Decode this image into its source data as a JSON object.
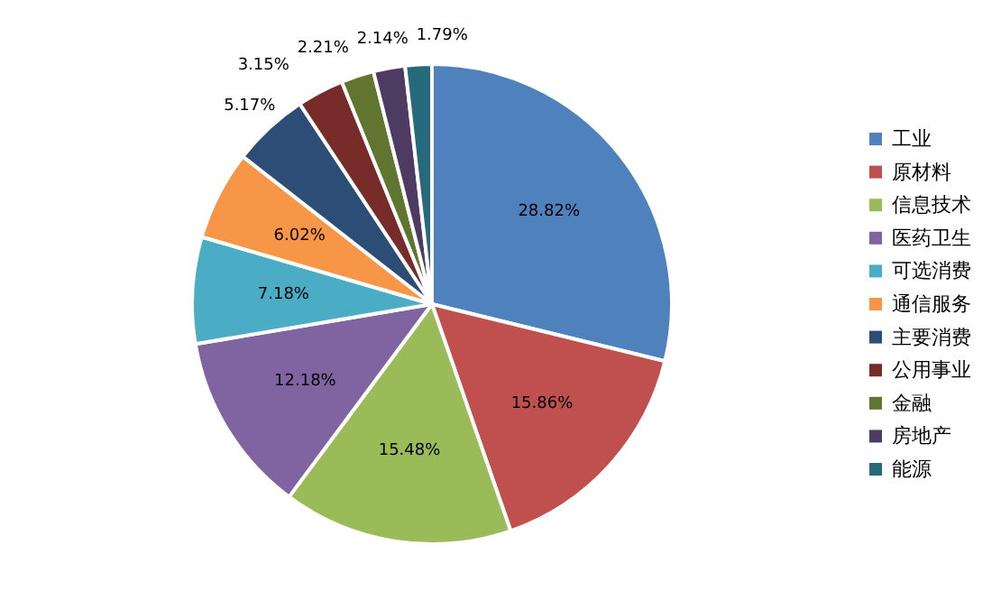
{
  "chart_data": {
    "type": "pie",
    "categories": [
      "工业",
      "原材料",
      "信息技术",
      "医药卫生",
      "可选消费",
      "通信服务",
      "主要消费",
      "公用事业",
      "金融",
      "房地产",
      "能源"
    ],
    "values": [
      28.82,
      15.86,
      15.48,
      12.18,
      7.18,
      6.02,
      5.17,
      3.15,
      2.21,
      2.14,
      1.79
    ],
    "value_labels": [
      "28.82%",
      "15.86%",
      "15.48%",
      "12.18%",
      "7.18%",
      "6.02%",
      "5.17%",
      "3.15%",
      "2.21%",
      "2.14%",
      "1.79%"
    ],
    "colors": [
      "#4f81bd",
      "#c0504d",
      "#9bbb59",
      "#8064a2",
      "#4bacc6",
      "#f79646",
      "#2c4d75",
      "#772c2a",
      "#5f7530",
      "#4d3b62",
      "#276a7c"
    ],
    "legend": "right"
  }
}
